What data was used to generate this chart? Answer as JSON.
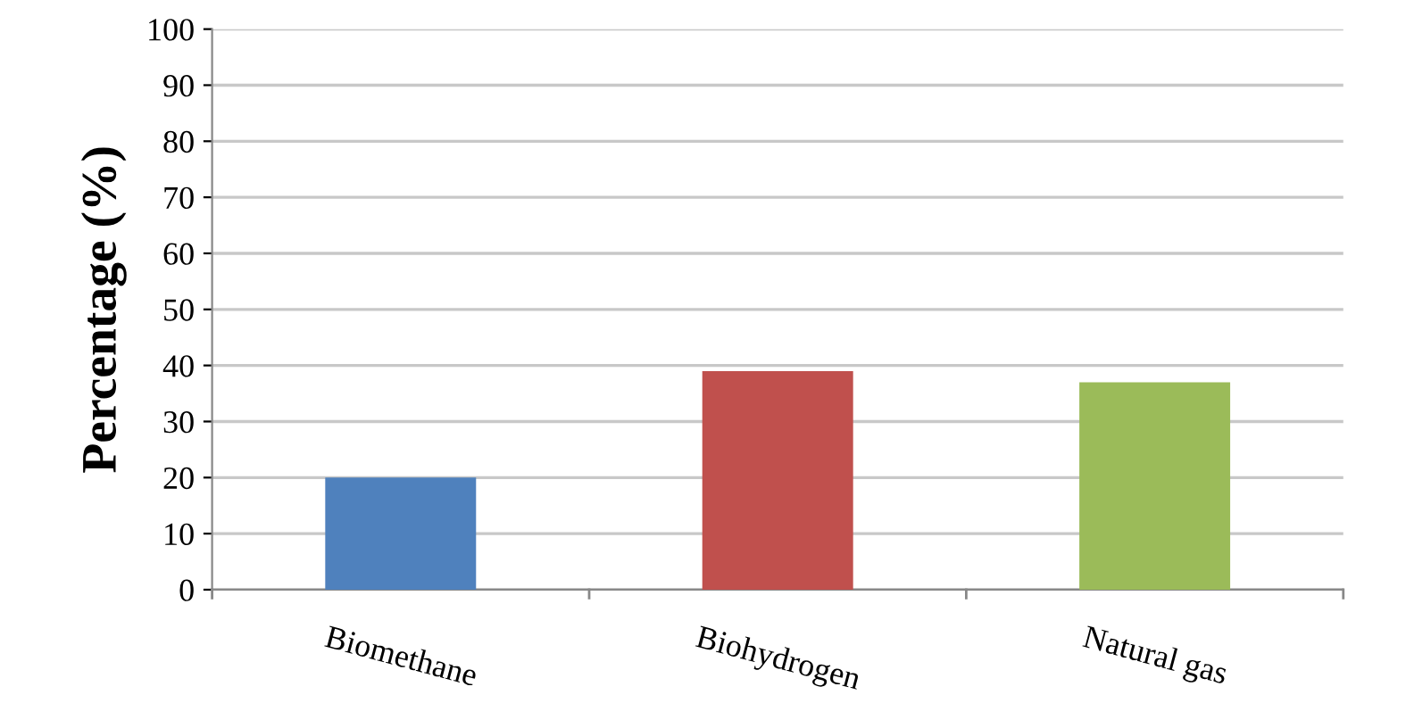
{
  "chart_data": {
    "type": "bar",
    "ylabel": "Percentage (%)",
    "categories": [
      "Biomethane",
      "Biohydrogen",
      "Natural gas"
    ],
    "values": [
      20,
      39,
      37
    ],
    "colors": [
      "#4f81bd",
      "#c0504d",
      "#9bbb59"
    ],
    "ylim": [
      0,
      100
    ],
    "yticks": [
      0,
      10,
      20,
      30,
      40,
      50,
      60,
      70,
      80,
      90,
      100
    ],
    "grid": "y",
    "legend": false
  }
}
